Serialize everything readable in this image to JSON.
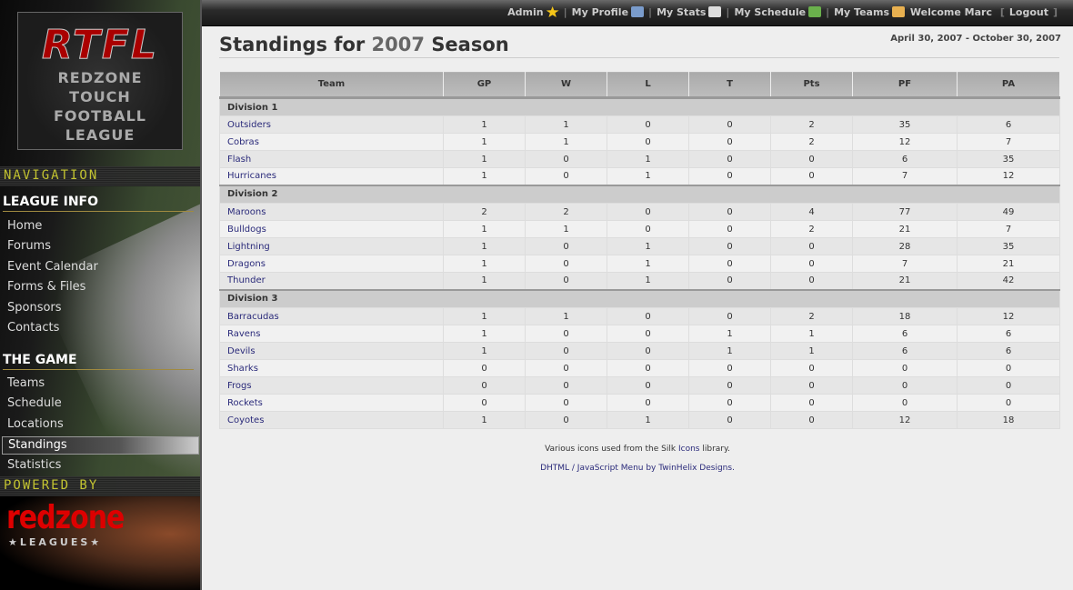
{
  "logo": {
    "abbr": "RTFL",
    "line1": "REDZONE",
    "line2": "TOUCH",
    "line3": "FOOTBALL",
    "line4": "LEAGUE"
  },
  "nav": {
    "heading": "NAVIGATION",
    "league_info": {
      "title": "LEAGUE INFO",
      "items": [
        "Home",
        "Forums",
        "Event Calendar",
        "Forms & Files",
        "Sponsors",
        "Contacts"
      ]
    },
    "the_game": {
      "title": "THE GAME",
      "items": [
        "Teams",
        "Schedule",
        "Locations",
        "Standings",
        "Statistics"
      ]
    },
    "active": "Standings",
    "powered_by": "POWERED BY",
    "powered_logo": "redzone",
    "powered_logo_sub": "★LEAGUES★"
  },
  "topbar": {
    "links": [
      {
        "label": "Admin",
        "icon": "star-icon",
        "color": "#f5c518"
      },
      {
        "label": "My Profile",
        "icon": "vcard-icon",
        "color": "#7a9ccc"
      },
      {
        "label": "My Stats",
        "icon": "calculator-icon",
        "color": "#dddddd"
      },
      {
        "label": "My Schedule",
        "icon": "calendar-icon",
        "color": "#6ab04c"
      },
      {
        "label": "My Teams",
        "icon": "group-icon",
        "color": "#e8b050"
      }
    ],
    "welcome": "Welcome Marc",
    "logout": "Logout",
    "bracket_open": "[",
    "bracket_close": "]"
  },
  "page": {
    "title_prefix": "Standings for",
    "year": "2007",
    "title_suffix": "Season",
    "date_range": "April 30, 2007 - October 30, 2007"
  },
  "table": {
    "columns": [
      "Team",
      "GP",
      "W",
      "L",
      "T",
      "Pts",
      "PF",
      "PA"
    ],
    "divisions": [
      {
        "name": "Division 1",
        "rows": [
          [
            "Outsiders",
            1,
            1,
            0,
            0,
            2,
            35,
            6
          ],
          [
            "Cobras",
            1,
            1,
            0,
            0,
            2,
            12,
            7
          ],
          [
            "Flash",
            1,
            0,
            1,
            0,
            0,
            6,
            35
          ],
          [
            "Hurricanes",
            1,
            0,
            1,
            0,
            0,
            7,
            12
          ]
        ]
      },
      {
        "name": "Division 2",
        "rows": [
          [
            "Maroons",
            2,
            2,
            0,
            0,
            4,
            77,
            49
          ],
          [
            "Bulldogs",
            1,
            1,
            0,
            0,
            2,
            21,
            7
          ],
          [
            "Lightning",
            1,
            0,
            1,
            0,
            0,
            28,
            35
          ],
          [
            "Dragons",
            1,
            0,
            1,
            0,
            0,
            7,
            21
          ],
          [
            "Thunder",
            1,
            0,
            1,
            0,
            0,
            21,
            42
          ]
        ]
      },
      {
        "name": "Division 3",
        "rows": [
          [
            "Barracudas",
            1,
            1,
            0,
            0,
            2,
            18,
            12
          ],
          [
            "Ravens",
            1,
            0,
            0,
            1,
            1,
            6,
            6
          ],
          [
            "Devils",
            1,
            0,
            0,
            1,
            1,
            6,
            6
          ],
          [
            "Sharks",
            0,
            0,
            0,
            0,
            0,
            0,
            0
          ],
          [
            "Frogs",
            0,
            0,
            0,
            0,
            0,
            0,
            0
          ],
          [
            "Rockets",
            0,
            0,
            0,
            0,
            0,
            0,
            0
          ],
          [
            "Coyotes",
            1,
            0,
            1,
            0,
            0,
            12,
            18
          ]
        ]
      }
    ]
  },
  "footer": {
    "line1_pre": "Various icons used from the Silk",
    "line1_link": "Icons",
    "line1_post": "library.",
    "line2": "DHTML / JavaScript Menu by TwinHelix Designs."
  }
}
